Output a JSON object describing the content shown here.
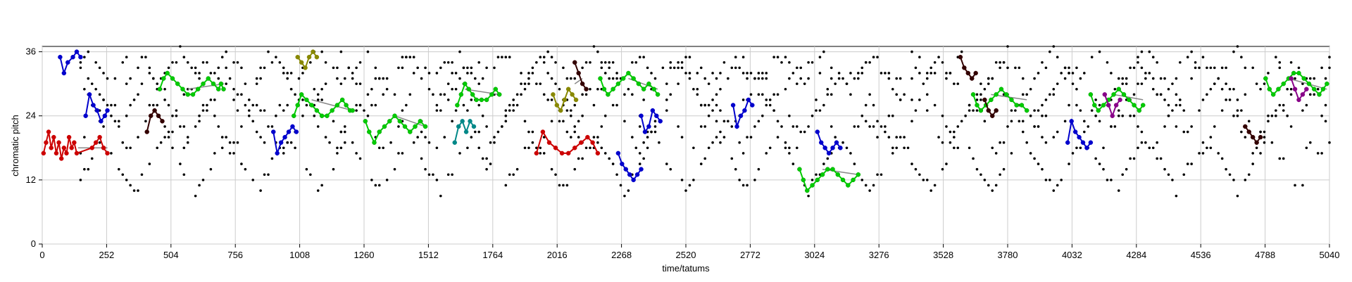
{
  "chart_data": {
    "type": "scatter",
    "xlabel": "time/tatums",
    "ylabel": "chromatic pitch",
    "xlim": [
      0,
      5040
    ],
    "ylim": [
      0,
      37
    ],
    "x_ticks": [
      0,
      252,
      504,
      756,
      1008,
      1260,
      1512,
      1764,
      2016,
      2268,
      2520,
      2772,
      3024,
      3276,
      3528,
      3780,
      4032,
      4284,
      4536,
      4788,
      5040
    ],
    "y_ticks": [
      0,
      12,
      24,
      36
    ],
    "grid": true,
    "series": [
      {
        "color": "#cc0000",
        "style": "line-markers",
        "points": [
          [
            5,
            17
          ],
          [
            15,
            19
          ],
          [
            25,
            21
          ],
          [
            35,
            18
          ],
          [
            45,
            20
          ],
          [
            55,
            17
          ],
          [
            65,
            19
          ],
          [
            75,
            16
          ],
          [
            85,
            18
          ],
          [
            95,
            17
          ],
          [
            105,
            20
          ],
          [
            115,
            18
          ],
          [
            125,
            19
          ],
          [
            135,
            17
          ],
          [
            195,
            18
          ],
          [
            210,
            19
          ],
          [
            225,
            20
          ],
          [
            240,
            18
          ],
          [
            255,
            17
          ]
        ]
      },
      {
        "color": "#cc0000",
        "style": "line-markers",
        "points": [
          [
            1935,
            17
          ],
          [
            1960,
            21
          ],
          [
            1985,
            19
          ],
          [
            2010,
            18
          ],
          [
            2035,
            17
          ],
          [
            2060,
            17
          ],
          [
            2085,
            18
          ],
          [
            2110,
            19
          ],
          [
            2135,
            20
          ],
          [
            2155,
            19
          ],
          [
            2175,
            17
          ]
        ]
      },
      {
        "color": "#0000cc",
        "style": "line-markers",
        "points": [
          [
            70,
            35
          ],
          [
            85,
            32
          ],
          [
            100,
            34
          ],
          [
            120,
            35
          ],
          [
            135,
            36
          ],
          [
            150,
            35
          ]
        ]
      },
      {
        "color": "#0000cc",
        "style": "line-markers",
        "points": [
          [
            170,
            24
          ],
          [
            185,
            28
          ],
          [
            200,
            26
          ],
          [
            215,
            25
          ],
          [
            230,
            23
          ],
          [
            245,
            24
          ],
          [
            255,
            25
          ]
        ]
      },
      {
        "color": "#0000cc",
        "style": "line-markers",
        "points": [
          [
            905,
            21
          ],
          [
            920,
            17
          ],
          [
            935,
            19
          ],
          [
            950,
            20
          ],
          [
            965,
            21
          ],
          [
            980,
            22
          ],
          [
            995,
            21
          ]
        ]
      },
      {
        "color": "#0000cc",
        "style": "line-markers",
        "points": [
          [
            2255,
            17
          ],
          [
            2270,
            15
          ],
          [
            2285,
            14
          ],
          [
            2300,
            13
          ],
          [
            2315,
            12
          ],
          [
            2330,
            13
          ],
          [
            2345,
            14
          ]
        ]
      },
      {
        "color": "#0000cc",
        "style": "line-markers",
        "points": [
          [
            2345,
            24
          ],
          [
            2360,
            21
          ],
          [
            2375,
            22
          ],
          [
            2390,
            25
          ],
          [
            2405,
            24
          ],
          [
            2420,
            23
          ]
        ]
      },
      {
        "color": "#0000cc",
        "style": "line-markers",
        "points": [
          [
            2705,
            26
          ],
          [
            2720,
            22
          ],
          [
            2735,
            24
          ],
          [
            2750,
            25
          ],
          [
            2765,
            27
          ],
          [
            2780,
            26
          ]
        ]
      },
      {
        "color": "#0000cc",
        "style": "line-markers",
        "points": [
          [
            3035,
            21
          ],
          [
            3050,
            19
          ],
          [
            3065,
            18
          ],
          [
            3080,
            17
          ],
          [
            3095,
            18
          ],
          [
            3110,
            19
          ],
          [
            3125,
            18
          ]
        ]
      },
      {
        "color": "#0000cc",
        "style": "line-markers",
        "points": [
          [
            4015,
            19
          ],
          [
            4030,
            23
          ],
          [
            4045,
            21
          ],
          [
            4060,
            20
          ],
          [
            4075,
            19
          ],
          [
            4090,
            18
          ],
          [
            4105,
            19
          ]
        ]
      },
      {
        "color": "#00cc00",
        "style": "line-markers",
        "points": [
          [
            460,
            29
          ],
          [
            475,
            31
          ],
          [
            490,
            32
          ],
          [
            510,
            31
          ],
          [
            530,
            30
          ],
          [
            550,
            29
          ],
          [
            570,
            28
          ],
          [
            590,
            28
          ],
          [
            610,
            29
          ],
          [
            630,
            30
          ],
          [
            650,
            31
          ],
          [
            670,
            30
          ],
          [
            690,
            29
          ],
          [
            700,
            30
          ],
          [
            710,
            29
          ]
        ]
      },
      {
        "color": "#00cc00",
        "style": "line-markers",
        "points": [
          [
            985,
            24
          ],
          [
            1000,
            26
          ],
          [
            1015,
            28
          ],
          [
            1035,
            27
          ],
          [
            1055,
            26
          ],
          [
            1075,
            25
          ],
          [
            1095,
            24
          ],
          [
            1115,
            24
          ],
          [
            1135,
            25
          ],
          [
            1155,
            26
          ],
          [
            1175,
            27
          ],
          [
            1190,
            26
          ],
          [
            1205,
            25
          ],
          [
            1215,
            25
          ]
        ]
      },
      {
        "color": "#00cc00",
        "style": "line-markers",
        "points": [
          [
            1265,
            23
          ],
          [
            1280,
            21
          ],
          [
            1300,
            19
          ],
          [
            1320,
            21
          ],
          [
            1340,
            22
          ],
          [
            1360,
            23
          ],
          [
            1380,
            24
          ],
          [
            1400,
            23
          ],
          [
            1420,
            22
          ],
          [
            1440,
            21
          ],
          [
            1460,
            22
          ],
          [
            1480,
            23
          ],
          [
            1500,
            22
          ]
        ]
      },
      {
        "color": "#00cc00",
        "style": "line-markers",
        "points": [
          [
            1625,
            26
          ],
          [
            1640,
            28
          ],
          [
            1655,
            30
          ],
          [
            1670,
            29
          ],
          [
            1685,
            28
          ],
          [
            1700,
            27
          ],
          [
            1720,
            27
          ],
          [
            1740,
            27
          ],
          [
            1760,
            28
          ],
          [
            1775,
            29
          ],
          [
            1790,
            28
          ]
        ]
      },
      {
        "color": "#00cc00",
        "style": "line-markers",
        "points": [
          [
            2185,
            31
          ],
          [
            2200,
            29
          ],
          [
            2215,
            28
          ],
          [
            2235,
            29
          ],
          [
            2255,
            30
          ],
          [
            2275,
            31
          ],
          [
            2295,
            32
          ],
          [
            2315,
            31
          ],
          [
            2335,
            30
          ],
          [
            2355,
            29
          ],
          [
            2375,
            30
          ],
          [
            2395,
            29
          ],
          [
            2410,
            28
          ]
        ]
      },
      {
        "color": "#00cc00",
        "style": "line-markers",
        "points": [
          [
            2965,
            14
          ],
          [
            2980,
            12
          ],
          [
            2995,
            10
          ],
          [
            3015,
            11
          ],
          [
            3035,
            12
          ],
          [
            3055,
            13
          ],
          [
            3075,
            14
          ],
          [
            3095,
            14
          ],
          [
            3115,
            13
          ],
          [
            3135,
            12
          ],
          [
            3155,
            11
          ],
          [
            3175,
            12
          ],
          [
            3195,
            13
          ]
        ]
      },
      {
        "color": "#00cc00",
        "style": "line-markers",
        "points": [
          [
            3645,
            28
          ],
          [
            3660,
            26
          ],
          [
            3675,
            25
          ],
          [
            3695,
            26
          ],
          [
            3715,
            27
          ],
          [
            3735,
            28
          ],
          [
            3755,
            29
          ],
          [
            3775,
            28
          ],
          [
            3795,
            27
          ],
          [
            3815,
            26
          ],
          [
            3835,
            26
          ],
          [
            3855,
            25
          ]
        ]
      },
      {
        "color": "#00cc00",
        "style": "line-markers",
        "points": [
          [
            4105,
            28
          ],
          [
            4120,
            26
          ],
          [
            4135,
            25
          ],
          [
            4155,
            26
          ],
          [
            4175,
            27
          ],
          [
            4195,
            28
          ],
          [
            4215,
            29
          ],
          [
            4235,
            28
          ],
          [
            4255,
            27
          ],
          [
            4275,
            26
          ],
          [
            4295,
            25
          ],
          [
            4310,
            26
          ]
        ]
      },
      {
        "color": "#00cc00",
        "style": "line-markers",
        "points": [
          [
            4790,
            31
          ],
          [
            4805,
            29
          ],
          [
            4820,
            28
          ],
          [
            4840,
            29
          ],
          [
            4860,
            30
          ],
          [
            4880,
            31
          ],
          [
            4900,
            32
          ],
          [
            4920,
            32
          ],
          [
            4940,
            31
          ],
          [
            4960,
            30
          ],
          [
            4980,
            29
          ],
          [
            5000,
            28
          ],
          [
            5015,
            29
          ],
          [
            5030,
            30
          ]
        ]
      },
      {
        "color": "#888800",
        "style": "line-markers",
        "points": [
          [
            1000,
            35
          ],
          [
            1015,
            34
          ],
          [
            1030,
            33
          ],
          [
            1045,
            35
          ],
          [
            1060,
            36
          ],
          [
            1075,
            35
          ]
        ]
      },
      {
        "color": "#888800",
        "style": "line-markers",
        "points": [
          [
            2000,
            28
          ],
          [
            2015,
            26
          ],
          [
            2030,
            25
          ],
          [
            2045,
            27
          ],
          [
            2060,
            29
          ],
          [
            2075,
            28
          ],
          [
            2090,
            27
          ]
        ]
      },
      {
        "color": "#008888",
        "style": "line-markers",
        "points": [
          [
            1615,
            19
          ],
          [
            1630,
            22
          ],
          [
            1645,
            23
          ],
          [
            1660,
            21
          ],
          [
            1675,
            23
          ],
          [
            1690,
            22
          ]
        ]
      },
      {
        "color": "#880088",
        "style": "line-markers",
        "points": [
          [
            4160,
            28
          ],
          [
            4175,
            26
          ],
          [
            4190,
            24
          ],
          [
            4205,
            26
          ],
          [
            4220,
            27
          ]
        ]
      },
      {
        "color": "#880088",
        "style": "line-markers",
        "points": [
          [
            4890,
            31
          ],
          [
            4905,
            29
          ],
          [
            4920,
            27
          ],
          [
            4935,
            28
          ],
          [
            4950,
            29
          ]
        ]
      },
      {
        "color": "#330000",
        "style": "line-markers",
        "points": [
          [
            410,
            21
          ],
          [
            425,
            24
          ],
          [
            440,
            25
          ],
          [
            455,
            24
          ],
          [
            470,
            23
          ]
        ]
      },
      {
        "color": "#330000",
        "style": "line-markers",
        "points": [
          [
            2085,
            34
          ],
          [
            2100,
            32
          ],
          [
            2115,
            30
          ],
          [
            2130,
            29
          ]
        ]
      },
      {
        "color": "#330000",
        "style": "line-markers",
        "points": [
          [
            3595,
            35
          ],
          [
            3610,
            33
          ],
          [
            3625,
            32
          ],
          [
            3640,
            31
          ],
          [
            3655,
            32
          ]
        ]
      },
      {
        "color": "#330000",
        "style": "line-markers",
        "points": [
          [
            3690,
            27
          ],
          [
            3705,
            25
          ],
          [
            3720,
            24
          ],
          [
            3735,
            25
          ]
        ]
      },
      {
        "color": "#330000",
        "style": "line-markers",
        "points": [
          [
            4710,
            22
          ],
          [
            4725,
            21
          ],
          [
            4740,
            20
          ],
          [
            4755,
            19
          ],
          [
            4770,
            20
          ]
        ]
      }
    ],
    "gray_lines": [
      [
        [
          140,
          18
        ],
        [
          255,
          18
        ]
      ],
      [
        [
          570,
          29
        ],
        [
          710,
          30
        ]
      ],
      [
        [
          1055,
          27
        ],
        [
          1215,
          25
        ]
      ],
      [
        [
          1380,
          24
        ],
        [
          1500,
          22
        ]
      ],
      [
        [
          1655,
          29
        ],
        [
          1790,
          28
        ]
      ],
      [
        [
          2085,
          30
        ],
        [
          2115,
          31
        ]
      ],
      [
        [
          2295,
          31
        ],
        [
          2410,
          29
        ]
      ],
      [
        [
          3055,
          14
        ],
        [
          3195,
          13
        ]
      ],
      [
        [
          3715,
          28
        ],
        [
          3855,
          27
        ]
      ],
      [
        [
          4195,
          28
        ],
        [
          4310,
          27
        ]
      ],
      [
        [
          4880,
          31
        ],
        [
          5030,
          29
        ]
      ]
    ],
    "background_points_shape": "zigzag contours of black dots across pitch 9–37"
  }
}
